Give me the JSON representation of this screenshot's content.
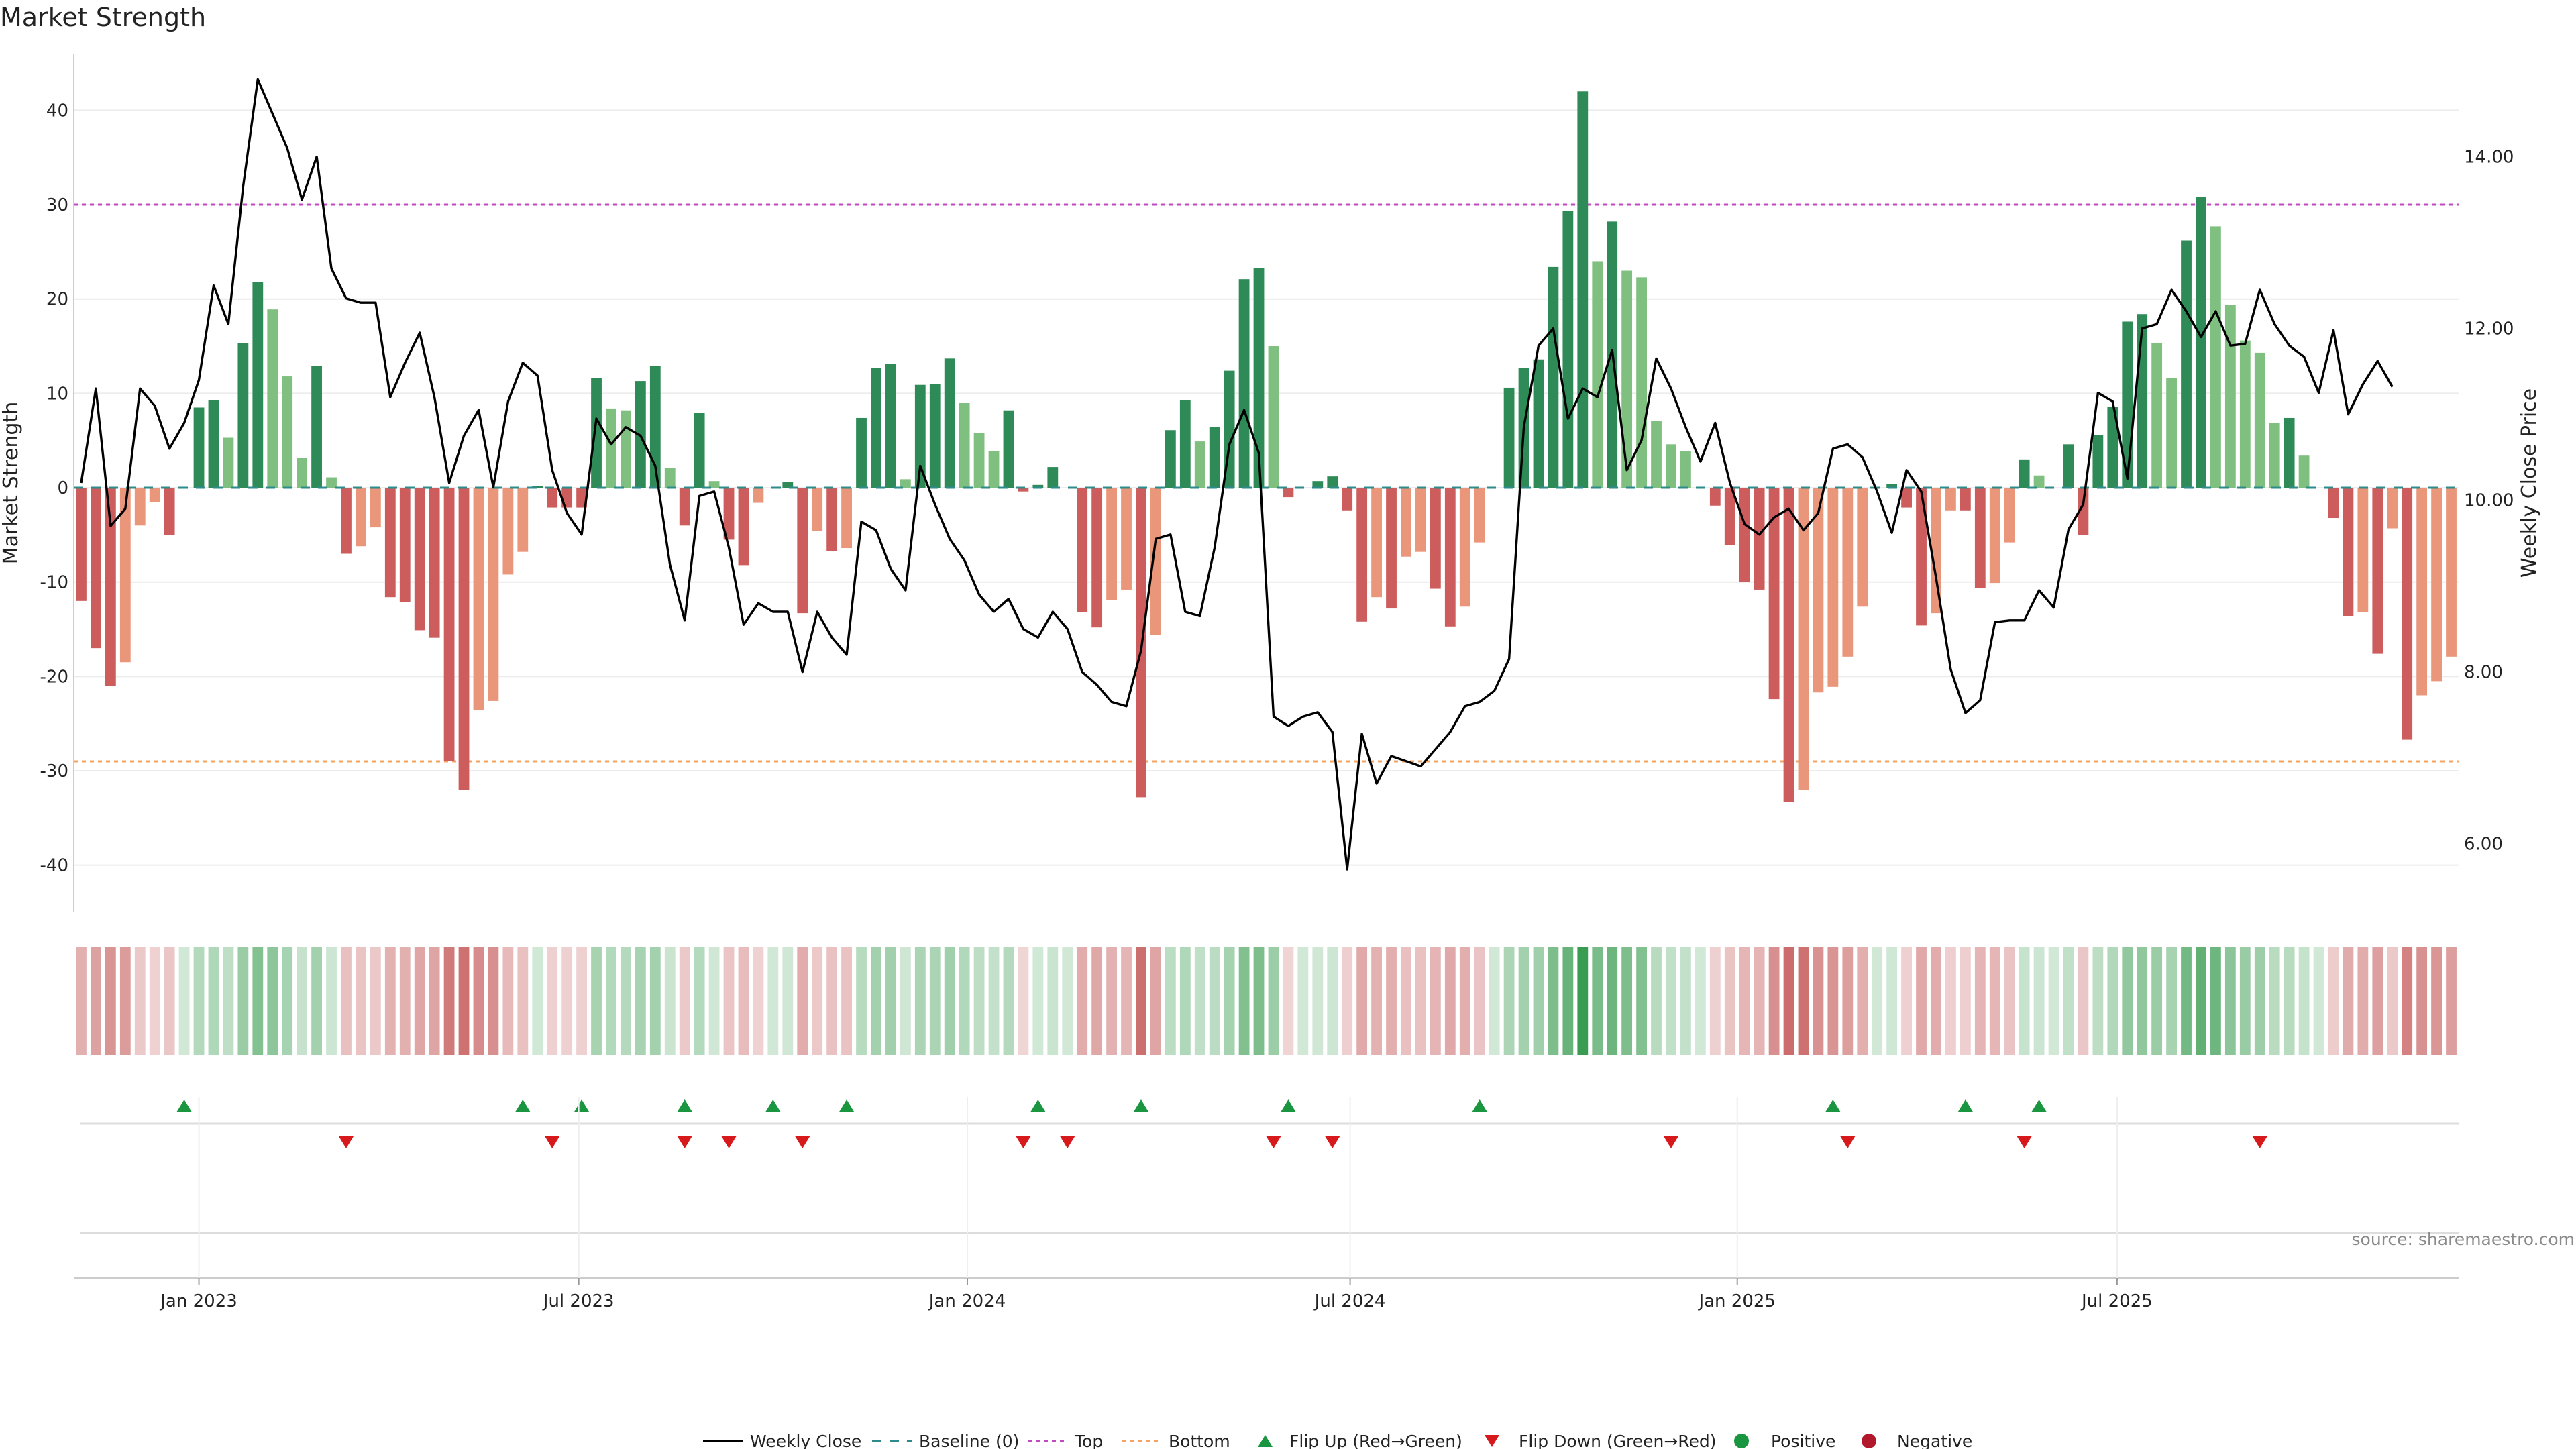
{
  "chart_data": {
    "type": "bar",
    "title": "Market Strength",
    "ylabel_left": "Market Strength",
    "ylabel_right": "Weekly Close Price",
    "left_ylim": [
      -45,
      46
    ],
    "left_yticks": [
      -40,
      -30,
      -20,
      -10,
      0,
      10,
      20,
      30,
      40
    ],
    "right_ylim": [
      5.2,
      15.2
    ],
    "right_yticks": [
      "6.00",
      "8.00",
      "10.00",
      "12.00",
      "14.00"
    ],
    "right_ytick_values": [
      6,
      8,
      10,
      12,
      14
    ],
    "x_tick_labels": [
      "Jan 2023",
      "Jul 2023",
      "Jan 2024",
      "Jul 2024",
      "Jan 2025",
      "Jul 2025"
    ],
    "x_tick_weeks": [
      8.5,
      34.3,
      60.7,
      86.7,
      113,
      138.8
    ],
    "top_line": 30,
    "bottom_line": -29,
    "colors": {
      "pos_strong": "#2e8b57",
      "pos_light": "#7fbf7f",
      "neg_strong": "#cd5c5c",
      "neg_light": "#e9967a",
      "top_line": "#c04bc0",
      "bottom_line": "#f4a460",
      "baseline": "#2e8b8b",
      "price_line": "#000000",
      "flip_up": "#1a9641",
      "flip_down": "#d7191c"
    },
    "strength": [
      -12,
      -17,
      -21,
      -18.5,
      -4,
      -1.5,
      -5,
      0,
      8.5,
      9.3,
      5.3,
      15.3,
      21.8,
      18.9,
      11.8,
      3.2,
      12.9,
      1.1,
      -7,
      -6.2,
      -4.2,
      -11.6,
      -12.1,
      -15.1,
      -15.9,
      -29,
      -32,
      -23.6,
      -22.6,
      -9.2,
      -6.8,
      0.2,
      -2.1,
      -2.1,
      -2.1,
      11.6,
      8.4,
      8.2,
      11.3,
      12.9,
      2.1,
      -4,
      7.9,
      0.7,
      -5.5,
      -8.2,
      -1.6,
      0,
      0.6,
      -13.3,
      -4.6,
      -6.7,
      -6.4,
      7.4,
      12.7,
      13.1,
      0.9,
      10.9,
      11,
      13.7,
      9,
      5.8,
      3.9,
      8.2,
      -0.4,
      0.3,
      2.2,
      0,
      -13.2,
      -14.8,
      -11.9,
      -10.8,
      -32.8,
      -15.6,
      6.1,
      9.3,
      4.9,
      6.4,
      12.4,
      22.1,
      23.3,
      15,
      -1,
      0,
      0.7,
      1.2,
      -2.4,
      -14.2,
      -11.6,
      -12.8,
      -7.3,
      -6.8,
      -10.7,
      -14.7,
      -12.6,
      -5.8,
      0,
      10.6,
      12.7,
      13.6,
      23.4,
      29.3,
      42,
      24,
      28.2,
      23,
      22.3,
      7.1,
      4.6,
      3.9,
      0,
      -1.9,
      -6.1,
      -10,
      -10.8,
      -22.4,
      -33.3,
      -32,
      -21.7,
      -21.1,
      -17.9,
      -12.6,
      0,
      0.4,
      -2.1,
      -14.6,
      -13.3,
      -2.4,
      -2.4,
      -10.6,
      -10.1,
      -5.8,
      3,
      1.3,
      0,
      4.6,
      -5,
      5.6,
      8.6,
      17.6,
      18.4,
      15.3,
      11.6,
      26.2,
      30.8,
      27.7,
      19.4,
      15.6,
      14.3,
      6.9,
      7.4,
      3.4,
      0,
      -3.2,
      -13.6,
      -13.2,
      -17.6,
      -4.3,
      -26.7,
      -22,
      -20.5,
      -17.9
    ],
    "price": [
      10.2,
      11.3,
      9.7,
      9.9,
      11.3,
      11.1,
      10.6,
      10.9,
      11.4,
      12.5,
      12.05,
      13.65,
      14.9,
      14.5,
      14.1,
      13.5,
      14,
      12.7,
      12.35,
      12.3,
      12.3,
      11.2,
      11.6,
      11.95,
      11.2,
      10.2,
      10.75,
      11.05,
      10.15,
      11.15,
      11.6,
      11.45,
      10.35,
      9.85,
      9.6,
      10.95,
      10.65,
      10.85,
      10.75,
      10.4,
      9.25,
      8.6,
      10.05,
      10.1,
      9.45,
      8.55,
      8.8,
      8.7,
      8.7,
      8.0,
      8.7,
      8.4,
      8.2,
      9.75,
      9.65,
      9.2,
      8.95,
      10.4,
      9.95,
      9.55,
      9.3,
      8.9,
      8.7,
      8.85,
      8.5,
      8.4,
      8.7,
      8.5,
      8.0,
      7.85,
      7.65,
      7.6,
      8.25,
      9.55,
      9.6,
      8.7,
      8.65,
      9.45,
      10.65,
      11.05,
      10.55,
      7.48,
      7.37,
      7.48,
      7.53,
      7.3,
      5.7,
      7.28,
      6.7,
      7.02,
      6.96,
      6.9,
      7.1,
      7.3,
      7.6,
      7.65,
      7.78,
      8.15,
      10.85,
      11.8,
      12.0,
      10.95,
      11.3,
      11.2,
      11.75,
      10.35,
      10.7,
      11.65,
      11.3,
      10.85,
      10.45,
      10.9,
      10.2,
      9.72,
      9.6,
      9.8,
      9.9,
      9.65,
      9.85,
      10.6,
      10.65,
      10.5,
      10.1,
      9.62,
      10.35,
      10.1,
      9.1,
      8.03,
      7.52,
      7.67,
      8.58,
      8.6,
      8.6,
      8.95,
      8.75,
      9.66,
      9.95,
      11.25,
      11.15,
      10.25,
      12.0,
      12.05,
      12.45,
      12.2,
      11.9,
      12.2,
      11.8,
      11.82,
      12.45,
      12.05,
      11.8,
      11.67,
      11.25,
      11.98,
      11.0,
      11.35,
      11.62,
      11.32
    ],
    "flip_up_weeks": [
      7,
      30,
      34,
      41,
      47,
      52,
      65,
      72,
      82,
      95,
      119,
      128,
      133
    ],
    "flip_down_weeks": [
      18,
      32,
      41,
      44,
      49,
      64,
      67,
      81,
      85,
      108,
      120,
      132,
      148
    ]
  },
  "source_text": "source: sharemaestro.com",
  "legend": {
    "weekly_close": "Weekly Close",
    "baseline": "Baseline (0)",
    "top": "Top",
    "bottom": "Bottom",
    "flip_up": "Flip Up (Red→Green)",
    "flip_down": "Flip Down (Green→Red)",
    "positive": "Positive",
    "negative": "Negative"
  }
}
